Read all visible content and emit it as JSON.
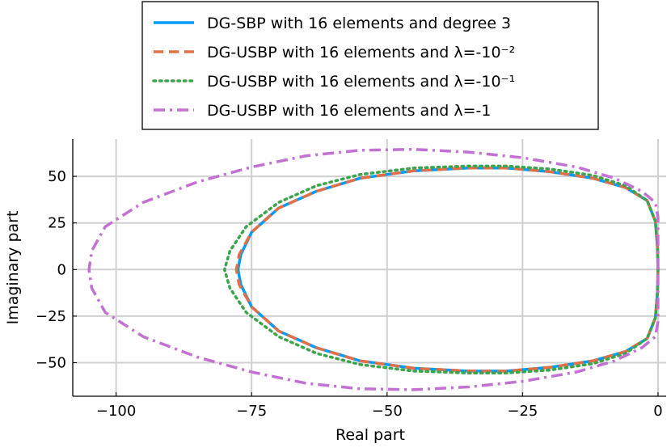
{
  "chart_data": {
    "type": "line",
    "xlabel": "Real part",
    "ylabel": "Imaginary part",
    "xlim": [
      -108,
      1.5
    ],
    "ylim": [
      -68,
      70
    ],
    "xticks": [
      -100,
      -75,
      -50,
      -25,
      0
    ],
    "xtick_labels": [
      "−100",
      "−75",
      "−50",
      "−25",
      "0"
    ],
    "yticks": [
      -50,
      -25,
      0,
      25,
      50
    ],
    "ytick_labels": [
      "−50",
      "−25",
      "0",
      "25",
      "50"
    ],
    "grid": true,
    "legend_position": "top-center, outside plot area",
    "series": [
      {
        "name": "DG-SBP with 16 elements and degree 3",
        "color": "#009af9",
        "dash": "solid",
        "points": [
          [
            0,
            0
          ],
          [
            -0.1,
            12
          ],
          [
            -0.5,
            26
          ],
          [
            -2,
            37
          ],
          [
            -6,
            44
          ],
          [
            -12,
            49
          ],
          [
            -20,
            52.5
          ],
          [
            -28,
            54.5
          ],
          [
            -35,
            54.5
          ],
          [
            -45,
            53
          ],
          [
            -55,
            49
          ],
          [
            -63,
            42
          ],
          [
            -70,
            33
          ],
          [
            -75,
            20
          ],
          [
            -77,
            8
          ],
          [
            -77.5,
            0
          ],
          [
            -77,
            -8
          ],
          [
            -75,
            -20
          ],
          [
            -70,
            -33
          ],
          [
            -63,
            -42
          ],
          [
            -55,
            -49
          ],
          [
            -45,
            -53
          ],
          [
            -35,
            -54.5
          ],
          [
            -28,
            -54.5
          ],
          [
            -20,
            -52.5
          ],
          [
            -12,
            -49
          ],
          [
            -6,
            -44
          ],
          [
            -2,
            -37
          ],
          [
            -0.5,
            -26
          ],
          [
            -0.1,
            -12
          ],
          [
            0,
            0
          ]
        ]
      },
      {
        "name": "DG-USBP with 16 elements and λ=-10⁻²",
        "color": "#e26f46",
        "dash": "dash",
        "points": [
          [
            0,
            0
          ],
          [
            -0.1,
            12
          ],
          [
            -0.5,
            26
          ],
          [
            -2,
            37
          ],
          [
            -6,
            44
          ],
          [
            -12,
            49
          ],
          [
            -20,
            52.5
          ],
          [
            -28,
            54.5
          ],
          [
            -35,
            54.5
          ],
          [
            -45,
            53
          ],
          [
            -55,
            49
          ],
          [
            -63,
            42
          ],
          [
            -70,
            33
          ],
          [
            -75,
            20
          ],
          [
            -77.3,
            8
          ],
          [
            -77.8,
            0
          ],
          [
            -77.3,
            -8
          ],
          [
            -75,
            -20
          ],
          [
            -70,
            -33
          ],
          [
            -63,
            -42
          ],
          [
            -55,
            -49
          ],
          [
            -45,
            -53
          ],
          [
            -35,
            -54.5
          ],
          [
            -28,
            -54.5
          ],
          [
            -20,
            -52.5
          ],
          [
            -12,
            -49
          ],
          [
            -6,
            -44
          ],
          [
            -2,
            -37
          ],
          [
            -0.5,
            -26
          ],
          [
            -0.1,
            -12
          ],
          [
            0,
            0
          ]
        ]
      },
      {
        "name": "DG-USBP with 16 elements and λ=-10⁻¹",
        "color": "#3da44d",
        "dash": "dot",
        "points": [
          [
            0,
            0
          ],
          [
            -0.1,
            12
          ],
          [
            -0.5,
            26
          ],
          [
            -2,
            37
          ],
          [
            -6,
            45
          ],
          [
            -12,
            50.5
          ],
          [
            -20,
            54
          ],
          [
            -28,
            55.5
          ],
          [
            -35,
            55.5
          ],
          [
            -45,
            54.5
          ],
          [
            -55,
            51
          ],
          [
            -63,
            45
          ],
          [
            -70,
            36
          ],
          [
            -76,
            23
          ],
          [
            -79,
            10
          ],
          [
            -80,
            0
          ],
          [
            -79,
            -10
          ],
          [
            -76,
            -23
          ],
          [
            -70,
            -36
          ],
          [
            -63,
            -45
          ],
          [
            -55,
            -51
          ],
          [
            -45,
            -54.5
          ],
          [
            -35,
            -55.5
          ],
          [
            -28,
            -55.5
          ],
          [
            -20,
            -54
          ],
          [
            -12,
            -50.5
          ],
          [
            -6,
            -45
          ],
          [
            -2,
            -37
          ],
          [
            -0.5,
            -26
          ],
          [
            -0.1,
            -12
          ],
          [
            0,
            0
          ]
        ]
      },
      {
        "name": "DG-USBP with 16 elements and λ=-1",
        "color": "#c271d2",
        "dash": "dashdot",
        "points": [
          [
            0,
            0
          ],
          [
            0,
            15
          ],
          [
            0,
            28
          ],
          [
            -0.5,
            36
          ],
          [
            -3,
            42
          ],
          [
            -8,
            49
          ],
          [
            -15,
            55
          ],
          [
            -25,
            60
          ],
          [
            -35,
            63
          ],
          [
            -45,
            64.5
          ],
          [
            -55,
            64
          ],
          [
            -65,
            61
          ],
          [
            -75,
            55
          ],
          [
            -85,
            47
          ],
          [
            -95,
            36
          ],
          [
            -102,
            23
          ],
          [
            -104.5,
            10
          ],
          [
            -105,
            0
          ],
          [
            -104.5,
            -10
          ],
          [
            -102,
            -23
          ],
          [
            -95,
            -36
          ],
          [
            -85,
            -47
          ],
          [
            -75,
            -55
          ],
          [
            -65,
            -61
          ],
          [
            -55,
            -64
          ],
          [
            -45,
            -64.5
          ],
          [
            -35,
            -63
          ],
          [
            -25,
            -60
          ],
          [
            -15,
            -55
          ],
          [
            -8,
            -49
          ],
          [
            -3,
            -42
          ],
          [
            -0.5,
            -36
          ],
          [
            0,
            -28
          ],
          [
            0,
            -15
          ],
          [
            0,
            0
          ]
        ]
      }
    ]
  }
}
